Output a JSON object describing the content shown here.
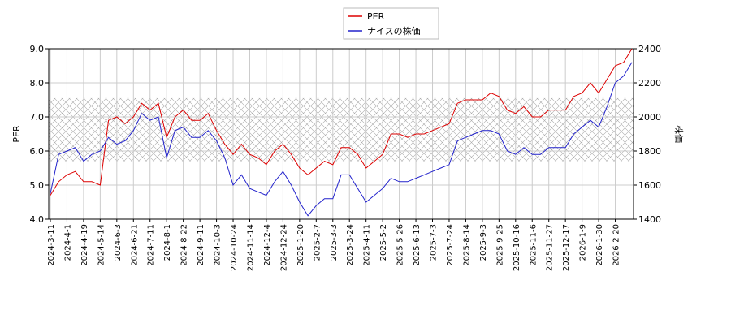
{
  "chart_data": {
    "type": "line",
    "x": [
      "2024-3-11",
      "2024-3-21",
      "2024-4-1",
      "2024-4-10",
      "2024-4-19",
      "2024-5-1",
      "2024-5-14",
      "2024-5-23",
      "2024-6-3",
      "2024-6-12",
      "2024-6-21",
      "2024-7-2",
      "2024-7-11",
      "2024-7-22",
      "2024-8-1",
      "2024-8-12",
      "2024-8-22",
      "2024-9-2",
      "2024-9-11",
      "2024-9-24",
      "2024-10-3",
      "2024-10-14",
      "2024-10-24",
      "2024-11-5",
      "2024-11-14",
      "2024-11-25",
      "2024-12-4",
      "2024-12-13",
      "2024-12-24",
      "2025-1-8",
      "2025-1-20",
      "2025-1-29",
      "2025-2-7",
      "2025-2-19",
      "2025-3-3",
      "2025-3-13",
      "2025-3-24",
      "2025-4-2",
      "2025-4-11",
      "2025-4-22",
      "2025-5-2",
      "2025-5-14",
      "2025-5-26",
      "2025-6-4",
      "2025-6-13",
      "2025-6-24",
      "2025-7-3",
      "2025-7-14",
      "2025-7-24",
      "2025-8-4",
      "2025-8-14",
      "2025-8-25",
      "2025-9-3",
      "2025-9-12",
      "2025-9-25",
      "2025-10-6",
      "2025-10-16",
      "2025-10-27",
      "2025-11-6",
      "2025-11-17",
      "2025-11-27",
      "2025-12-8",
      "2025-12-17",
      "2025-12-29",
      "2026-1-9",
      "2026-1-20",
      "2026-1-30",
      "2026-2-10",
      "2026-2-20",
      "2026-3-2",
      "2026-3-9"
    ],
    "xticks": [
      "2024-3-11",
      "2024-4-1",
      "2024-4-19",
      "2024-5-14",
      "2024-6-3",
      "2024-6-21",
      "2024-7-11",
      "2024-8-1",
      "2024-8-22",
      "2024-9-11",
      "2024-10-3",
      "2024-10-24",
      "2024-11-14",
      "2024-12-4",
      "2024-12-24",
      "2025-1-20",
      "2025-2-7",
      "2025-3-3",
      "2025-3-24",
      "2025-4-11",
      "2025-5-2",
      "2025-5-26",
      "2025-6-13",
      "2025-7-3",
      "2025-7-24",
      "2025-8-14",
      "2025-9-3",
      "2025-9-25",
      "2025-10-16",
      "2025-11-6",
      "2025-11-27",
      "2025-12-17",
      "2026-1-9",
      "2026-1-30",
      "2026-2-20"
    ],
    "series": [
      {
        "name": "PER",
        "color": "#dd0000",
        "axis": "y",
        "values": [
          4.7,
          5.1,
          5.3,
          5.4,
          5.1,
          5.1,
          5.0,
          6.9,
          7.0,
          6.8,
          7.0,
          7.4,
          7.2,
          7.4,
          6.4,
          7.0,
          7.2,
          6.9,
          6.9,
          7.1,
          6.6,
          6.2,
          5.9,
          6.2,
          5.9,
          5.8,
          5.6,
          6.0,
          6.2,
          5.9,
          5.5,
          5.3,
          5.5,
          5.7,
          5.6,
          6.1,
          6.1,
          5.9,
          5.5,
          5.7,
          5.9,
          6.5,
          6.5,
          6.4,
          6.5,
          6.5,
          6.6,
          6.7,
          6.8,
          7.4,
          7.5,
          7.5,
          7.5,
          7.7,
          7.6,
          7.2,
          7.1,
          7.3,
          7.0,
          7.0,
          7.2,
          7.2,
          7.2,
          7.6,
          7.7,
          8.0,
          7.7,
          8.1,
          8.5,
          8.6,
          9.0
        ]
      },
      {
        "name": "ナイスの株価",
        "color": "#2222cc",
        "axis": "y2",
        "values": [
          1550,
          1780,
          1800,
          1820,
          1740,
          1780,
          1800,
          1880,
          1840,
          1860,
          1920,
          2020,
          1980,
          2000,
          1760,
          1920,
          1940,
          1880,
          1880,
          1920,
          1860,
          1760,
          1600,
          1660,
          1580,
          1560,
          1540,
          1620,
          1680,
          1600,
          1500,
          1420,
          1480,
          1520,
          1520,
          1660,
          1660,
          1580,
          1500,
          1540,
          1580,
          1640,
          1620,
          1620,
          1640,
          1660,
          1680,
          1700,
          1720,
          1860,
          1880,
          1900,
          1920,
          1920,
          1900,
          1800,
          1780,
          1820,
          1780,
          1780,
          1820,
          1820,
          1820,
          1900,
          1940,
          1980,
          1940,
          2060,
          2200,
          2240,
          2320
        ]
      }
    ],
    "ylabel": "PER",
    "y2label": "株価",
    "ylim": [
      4,
      9
    ],
    "yticks": [
      {
        "value": 4,
        "label": "4.0"
      },
      {
        "value": 5,
        "label": "5.0"
      },
      {
        "value": 6,
        "label": "6.0"
      },
      {
        "value": 7,
        "label": "7.0"
      },
      {
        "value": 8,
        "label": "8.0"
      },
      {
        "value": 9,
        "label": "9.0"
      }
    ],
    "y2lim": [
      1400,
      2400
    ],
    "y2ticks": [
      1400,
      1600,
      1800,
      2000,
      2200,
      2400
    ],
    "shaded_range": [
      5.7,
      7.55
    ],
    "grid": true
  }
}
